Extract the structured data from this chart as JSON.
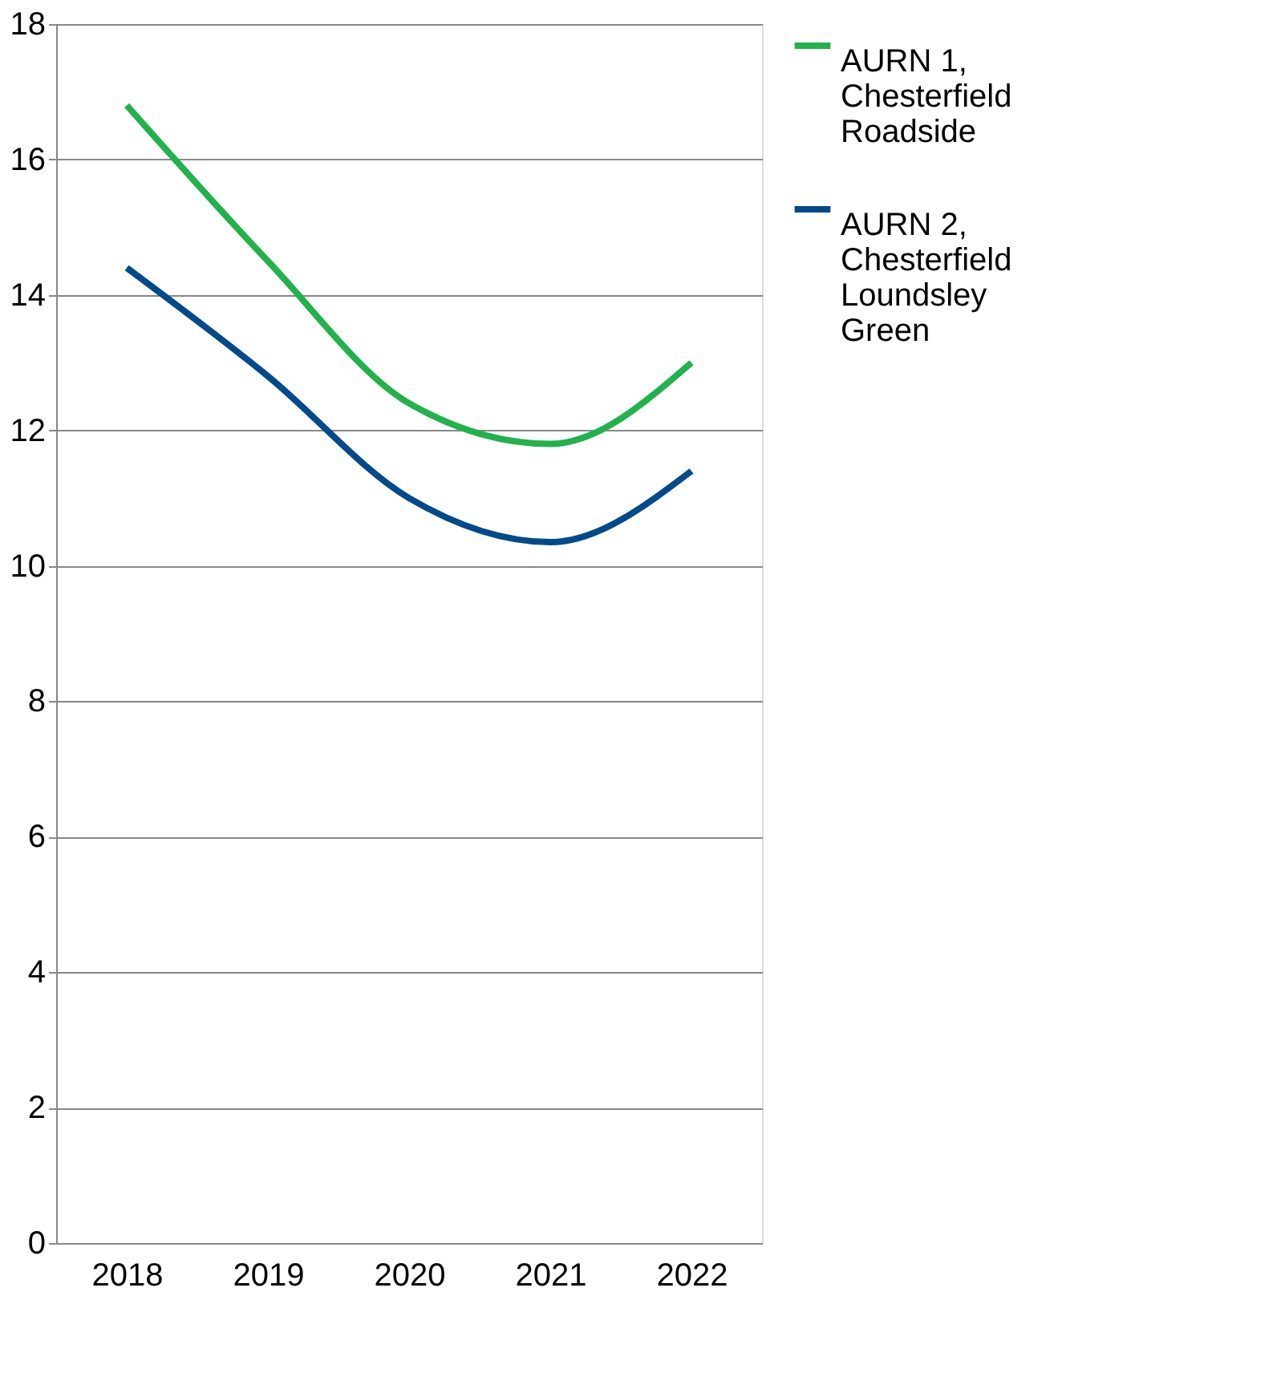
{
  "chart_data": {
    "type": "line",
    "categories": [
      "2018",
      "2019",
      "2020",
      "2021",
      "2022"
    ],
    "series": [
      {
        "name": "AURN 1, Chesterfield Roadside",
        "color": "#21b24b",
        "values": [
          16.8,
          14.5,
          12.4,
          11.8,
          13.0
        ]
      },
      {
        "name": "AURN 2, Chesterfield Loundsley Green",
        "color": "#004a8c",
        "values": [
          14.4,
          12.8,
          11.0,
          10.35,
          11.4
        ]
      }
    ],
    "ylim": [
      0,
      18
    ],
    "yticks": [
      0,
      2,
      4,
      6,
      8,
      10,
      12,
      14,
      16,
      18
    ],
    "grid": "y",
    "legend": "right",
    "marker": "none",
    "line_style": "solid"
  }
}
